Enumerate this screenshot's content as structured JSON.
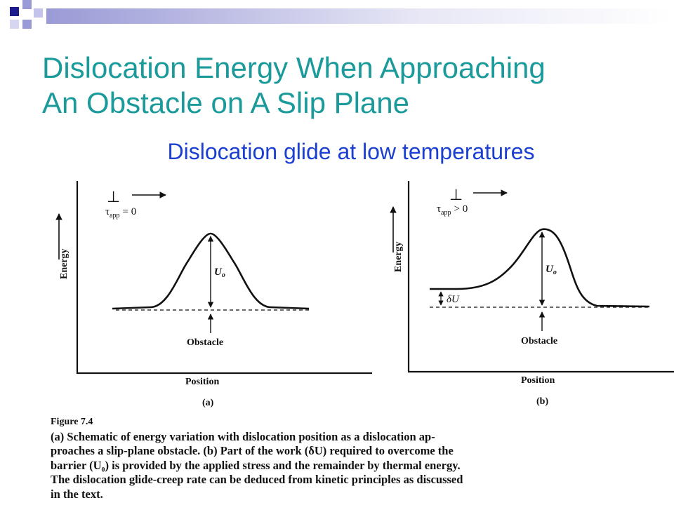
{
  "slide": {
    "title_line1": "Dislocation Energy When Approaching",
    "title_line2": "An Obstacle on A Slip Plane",
    "subtitle": "Dislocation glide at low temperatures"
  },
  "figure": {
    "panel_a": {
      "dislocation_symbol": "⊥",
      "stress_symbol": "τ",
      "stress_subscript": "app",
      "stress_relation": "= 0",
      "y_axis_label": "Energy",
      "x_axis_label": "Position",
      "barrier_label": "U",
      "barrier_subscript": "o",
      "obstacle_label": "Obstacle",
      "panel_label": "(a)"
    },
    "panel_b": {
      "dislocation_symbol": "⊥",
      "stress_symbol": "τ",
      "stress_subscript": "app",
      "stress_relation": "> 0",
      "y_axis_label": "Energy",
      "x_axis_label": "Position",
      "barrier_label": "U",
      "barrier_subscript": "o",
      "delta_label": "δU",
      "obstacle_label": "Obstacle",
      "panel_label": "(b)"
    },
    "caption": {
      "figure_number": "Figure 7.4",
      "lines": [
        "(a) Schematic of energy variation with dislocation position as a dislocation ap-",
        "proaches a slip-plane obstacle.  (b) Part of the work (δU) required to overcome the",
        "barrier (U₀) is provided by the applied stress and the remainder by thermal energy.",
        "The dislocation glide-creep rate can be deduced from kinetic principles as discussed",
        "in the text."
      ]
    }
  },
  "colors": {
    "title": "#1a9a9a",
    "subtitle": "#1b3fd1",
    "deco_navy": "#1c1c8c",
    "deco_lavender": "#9090d0"
  }
}
